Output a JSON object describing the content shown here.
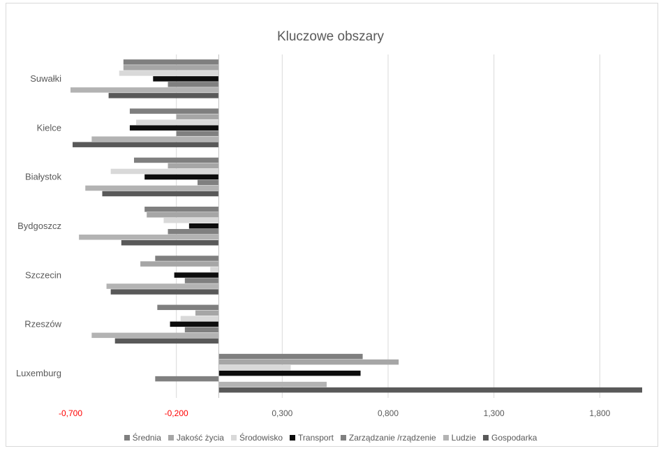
{
  "chart_data": {
    "type": "bar",
    "orientation": "horizontal",
    "title": "Kluczowe obszary",
    "categories": [
      "Suwałki",
      "Kielce",
      "Białystok",
      "Bydgoszcz",
      "Szczecin",
      "Rzeszów",
      "Luxemburg"
    ],
    "xlim": [
      -0.7,
      2.0
    ],
    "x_ticks": [
      "-0,700",
      "-0,200",
      "0,300",
      "0,800",
      "1,300",
      "1,800"
    ],
    "x_tick_values": [
      -0.7,
      -0.2,
      0.3,
      0.8,
      1.3,
      1.8
    ],
    "grid": "vertical",
    "legend_position": "bottom",
    "series": [
      {
        "name": "Średnia",
        "color": "#7f7f7f",
        "values": [
          -0.45,
          -0.42,
          -0.4,
          -0.35,
          -0.3,
          -0.29,
          0.68
        ]
      },
      {
        "name": "Jakość życia",
        "color": "#a6a6a6",
        "values": [
          -0.45,
          -0.2,
          -0.24,
          -0.34,
          -0.37,
          -0.11,
          0.85
        ]
      },
      {
        "name": "Środowisko",
        "color": "#d9d9d9",
        "values": [
          -0.47,
          -0.39,
          -0.51,
          -0.26,
          -0.04,
          -0.18,
          0.34
        ]
      },
      {
        "name": "Transport",
        "color": "#0d0d0d",
        "values": [
          -0.31,
          -0.42,
          -0.35,
          -0.14,
          -0.21,
          -0.23,
          0.67
        ]
      },
      {
        "name": "Zarządzanie /rządzenie",
        "color": "#808080",
        "values": [
          -0.24,
          -0.2,
          -0.1,
          -0.24,
          -0.16,
          -0.16,
          -0.3
        ]
      },
      {
        "name": "Ludzie",
        "color": "#b3b3b3",
        "values": [
          -0.7,
          -0.6,
          -0.63,
          -0.66,
          -0.53,
          -0.6,
          0.51
        ]
      },
      {
        "name": "Gospodarka",
        "color": "#595959",
        "values": [
          -0.52,
          -0.69,
          -0.55,
          -0.46,
          -0.51,
          -0.49,
          2.0
        ]
      }
    ]
  }
}
